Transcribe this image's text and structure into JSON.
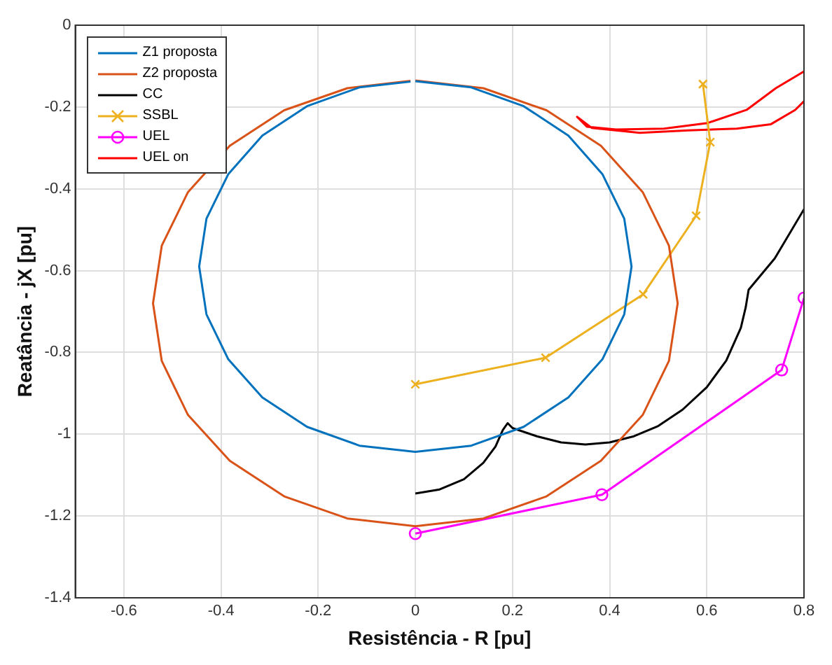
{
  "chart_data": {
    "type": "line",
    "xlabel": "Resistência - R [pu]",
    "ylabel": "Reatância - jX [pu]",
    "xlim": [
      -0.7,
      0.8
    ],
    "ylim": [
      -1.4,
      0
    ],
    "xticks": [
      -0.6,
      -0.4,
      -0.2,
      0,
      0.2,
      0.4,
      0.6,
      0.8
    ],
    "yticks": [
      -1.4,
      -1.2,
      -1,
      -0.8,
      -0.6,
      -0.4,
      -0.2,
      0
    ],
    "grid": true,
    "legend": "top left",
    "series": [
      {
        "name": "Z1 proposta",
        "color": "#0072bd",
        "marker": "none",
        "x": [
          0,
          0.115,
          0.223,
          0.315,
          0.385,
          0.43,
          0.445,
          0.43,
          0.385,
          0.315,
          0.223,
          0.115,
          0,
          -0.115,
          -0.223,
          -0.315,
          -0.385,
          -0.43,
          -0.445,
          -0.43,
          -0.385,
          -0.315,
          -0.223,
          -0.115,
          -0.01
        ],
        "values": [
          -0.137,
          -0.152,
          -0.198,
          -0.27,
          -0.364,
          -0.473,
          -0.59,
          -0.707,
          -0.817,
          -0.91,
          -0.982,
          -1.028,
          -1.043,
          -1.028,
          -0.982,
          -0.91,
          -0.817,
          -0.707,
          -0.59,
          -0.473,
          -0.364,
          -0.27,
          -0.198,
          -0.152,
          -0.138
        ]
      },
      {
        "name": "Z2 proposta",
        "color": "#d95319",
        "marker": "none",
        "x": [
          0,
          0.14,
          0.27,
          0.382,
          0.468,
          0.522,
          0.54,
          0.522,
          0.468,
          0.382,
          0.27,
          0.14,
          0,
          -0.14,
          -0.27,
          -0.382,
          -0.468,
          -0.522,
          -0.54,
          -0.522,
          -0.468,
          -0.382,
          -0.27,
          -0.14,
          -0.01
        ],
        "values": [
          -0.135,
          -0.154,
          -0.208,
          -0.295,
          -0.408,
          -0.539,
          -0.68,
          -0.821,
          -0.953,
          -1.065,
          -1.152,
          -1.206,
          -1.225,
          -1.206,
          -1.152,
          -1.065,
          -0.953,
          -0.821,
          -0.68,
          -0.539,
          -0.408,
          -0.295,
          -0.208,
          -0.154,
          -0.136
        ]
      },
      {
        "name": "CC",
        "color": "#000000",
        "marker": "none",
        "x": [
          0,
          0.05,
          0.1,
          0.14,
          0.165,
          0.18,
          0.19,
          0.2,
          0.25,
          0.3,
          0.35,
          0.4,
          0.45,
          0.5,
          0.55,
          0.6,
          0.64,
          0.67,
          0.68,
          0.686,
          0.74,
          0.8
        ],
        "values": [
          -1.145,
          -1.135,
          -1.11,
          -1.07,
          -1.03,
          -0.99,
          -0.973,
          -0.985,
          -1.005,
          -1.02,
          -1.025,
          -1.02,
          -1.005,
          -0.98,
          -0.94,
          -0.885,
          -0.82,
          -0.74,
          -0.69,
          -0.647,
          -0.57,
          -0.45
        ]
      },
      {
        "name": "SSBL",
        "color": "#edb120",
        "marker": "cross",
        "x": [
          0,
          0.268,
          0.469,
          0.578,
          0.607,
          0.592
        ],
        "values": [
          -0.878,
          -0.813,
          -0.658,
          -0.466,
          -0.286,
          -0.144
        ]
      },
      {
        "name": "UEL",
        "color": "#ff00ff",
        "marker": "circle",
        "x": [
          0,
          0.384,
          0.754,
          0.8
        ],
        "values": [
          -1.243,
          -1.148,
          -0.843,
          -0.667
        ]
      },
      {
        "name": "UEL on",
        "color": "#ff0000",
        "marker": "none",
        "x": [
          0.8,
          0.742,
          0.682,
          0.602,
          0.512,
          0.413,
          0.353,
          0.333,
          0.363,
          0.462,
          0.562,
          0.662,
          0.732,
          0.782,
          0.8
        ],
        "values": [
          -0.113,
          -0.154,
          -0.207,
          -0.239,
          -0.253,
          -0.255,
          -0.248,
          -0.224,
          -0.251,
          -0.263,
          -0.257,
          -0.253,
          -0.242,
          -0.207,
          -0.186
        ]
      }
    ]
  }
}
